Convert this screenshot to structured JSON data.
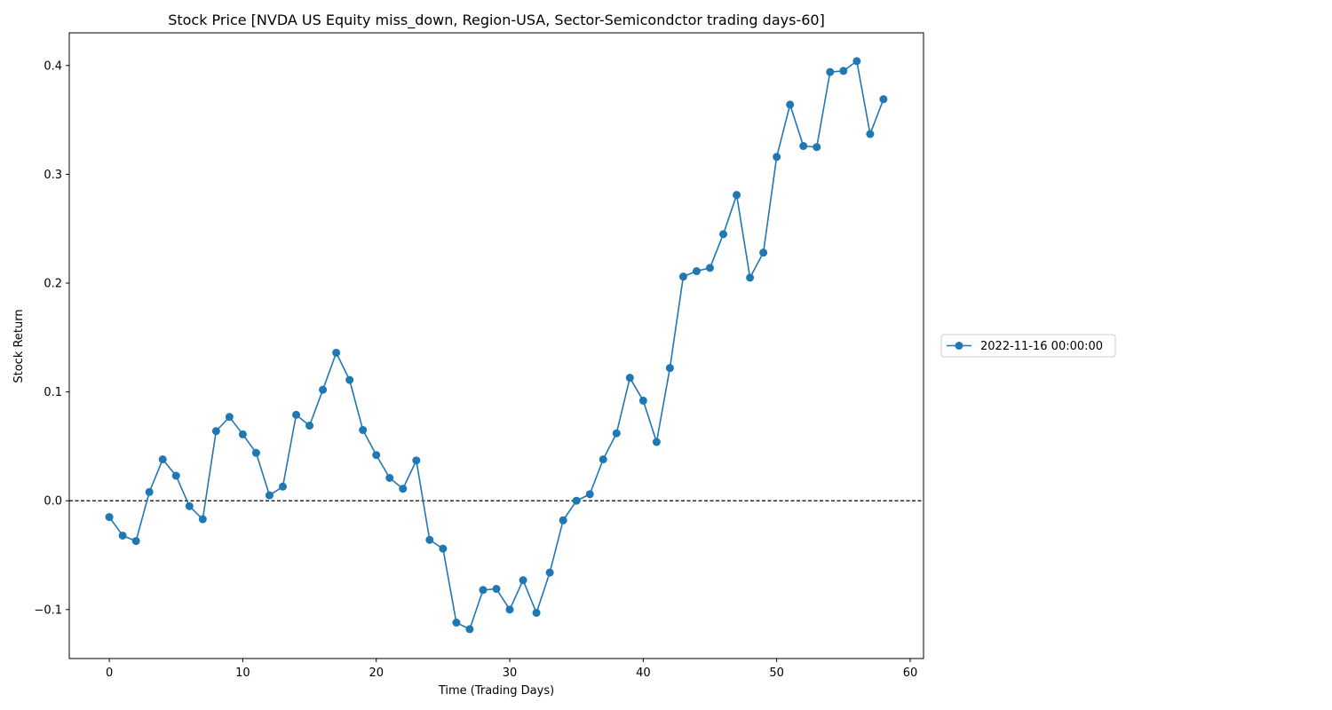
{
  "chart_data": {
    "type": "line",
    "title": "Stock Price [NVDA US Equity miss_down, Region-USA, Sector-Semicondctor trading days-60]",
    "xlabel": "Time (Trading Days)",
    "ylabel": "Stock Return",
    "xlim": [
      -3,
      61
    ],
    "ylim": [
      -0.145,
      0.43
    ],
    "xticks": [
      0,
      10,
      20,
      30,
      40,
      50,
      60
    ],
    "xtick_labels": [
      "0",
      "10",
      "20",
      "30",
      "40",
      "50",
      "60"
    ],
    "yticks": [
      -0.1,
      0.0,
      0.1,
      0.2,
      0.3,
      0.4
    ],
    "ytick_labels": [
      "−0.1",
      "0.0",
      "0.1",
      "0.2",
      "0.3",
      "0.4"
    ],
    "reference_line": {
      "y": 0,
      "style": "dashed",
      "color": "#000000"
    },
    "grid": false,
    "legend_position": "right",
    "series": [
      {
        "name": "2022-11-16 00:00:00",
        "color": "#1f77b4",
        "marker": "circle",
        "x": [
          0,
          1,
          2,
          3,
          4,
          5,
          6,
          7,
          8,
          9,
          10,
          11,
          12,
          13,
          14,
          15,
          16,
          17,
          18,
          19,
          20,
          21,
          22,
          23,
          24,
          25,
          26,
          27,
          28,
          29,
          30,
          31,
          32,
          33,
          34,
          35,
          36,
          37,
          38,
          39,
          40,
          41,
          42,
          43,
          44,
          45,
          46,
          47,
          48,
          49,
          50,
          51,
          52,
          53,
          54,
          55,
          56,
          57,
          58
        ],
        "values": [
          -0.015,
          -0.032,
          -0.037,
          0.008,
          0.038,
          0.023,
          -0.005,
          -0.017,
          0.064,
          0.077,
          0.061,
          0.044,
          0.005,
          0.013,
          0.079,
          0.069,
          0.102,
          0.136,
          0.111,
          0.065,
          0.042,
          0.021,
          0.011,
          0.037,
          -0.036,
          -0.044,
          -0.112,
          -0.118,
          -0.082,
          -0.081,
          -0.1,
          -0.073,
          -0.103,
          -0.066,
          -0.018,
          0.0,
          0.006,
          0.038,
          0.062,
          0.113,
          0.092,
          0.054,
          0.122,
          0.206,
          0.211,
          0.214,
          0.245,
          0.281,
          0.205,
          0.228,
          0.316,
          0.364,
          0.326,
          0.325,
          0.394,
          0.395,
          0.404,
          0.337,
          0.369
        ]
      }
    ]
  }
}
